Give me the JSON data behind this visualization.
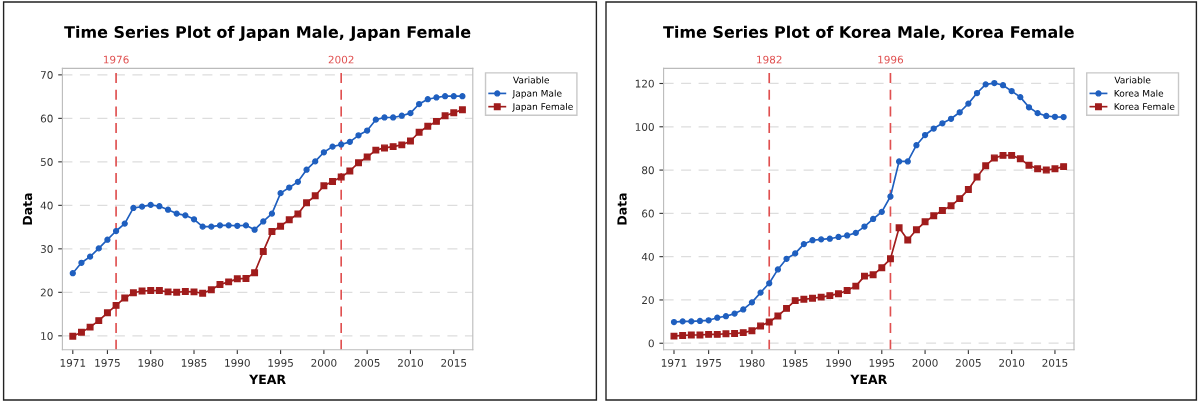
{
  "chart_data": [
    {
      "type": "line",
      "title": "Time Series Plot of Japan Male, Japan Female",
      "xlabel": "YEAR",
      "ylabel": "Data",
      "legend_title": "Variable",
      "legend": "top right",
      "grid": "y",
      "x": [
        1971,
        1972,
        1973,
        1974,
        1975,
        1976,
        1977,
        1978,
        1979,
        1980,
        1981,
        1982,
        1983,
        1984,
        1985,
        1986,
        1987,
        1988,
        1989,
        1990,
        1991,
        1992,
        1993,
        1994,
        1995,
        1996,
        1997,
        1998,
        1999,
        2000,
        2001,
        2002,
        2003,
        2004,
        2005,
        2006,
        2007,
        2008,
        2009,
        2010,
        2011,
        2012,
        2013,
        2014,
        2015,
        2016
      ],
      "xlim": [
        1969.8,
        2017.2
      ],
      "xticks": [
        1971,
        1975,
        1980,
        1985,
        1990,
        1995,
        2000,
        2005,
        2010,
        2015
      ],
      "ylim": [
        6.8,
        71.5
      ],
      "yticks": [
        10,
        20,
        30,
        40,
        50,
        60,
        70
      ],
      "ref_lines": [
        {
          "axis": "x",
          "value": 1976,
          "label": "1976",
          "color": "#e05050",
          "line_style": "dashed"
        },
        {
          "axis": "x",
          "value": 2002,
          "label": "2002",
          "color": "#e05050",
          "line_style": "dashed"
        }
      ],
      "series": [
        {
          "name": "Japan Male",
          "color": "#1f5fbf",
          "marker": "circle",
          "values": [
            24.4,
            26.8,
            28.2,
            30.1,
            32.1,
            34.1,
            35.8,
            39.4,
            39.7,
            40.1,
            39.8,
            39.0,
            38.1,
            37.7,
            36.8,
            35.1,
            35.1,
            35.4,
            35.4,
            35.3,
            35.4,
            34.4,
            36.3,
            38.1,
            42.8,
            44.1,
            45.4,
            48.2,
            50.1,
            52.2,
            53.5,
            54.0,
            54.6,
            56.1,
            57.2,
            59.7,
            60.2,
            60.2,
            60.6,
            61.2,
            63.3,
            64.4,
            64.8,
            65.1,
            65.1,
            65.1
          ]
        },
        {
          "name": "Japan Female",
          "color": "#a01c1c",
          "marker": "square",
          "values": [
            9.9,
            10.8,
            12.0,
            13.5,
            15.3,
            17.0,
            18.7,
            19.9,
            20.3,
            20.4,
            20.4,
            20.1,
            20.0,
            20.2,
            20.1,
            19.8,
            20.6,
            21.8,
            22.4,
            23.1,
            23.2,
            24.5,
            29.4,
            34.0,
            35.2,
            36.7,
            38.0,
            40.6,
            42.2,
            44.5,
            45.5,
            46.5,
            47.9,
            49.8,
            51.1,
            52.7,
            53.2,
            53.5,
            53.9,
            54.8,
            56.8,
            58.2,
            59.3,
            60.6,
            61.3,
            62.0
          ]
        }
      ]
    },
    {
      "type": "line",
      "title": "Time Series Plot of Korea Male, Korea Female",
      "xlabel": "YEAR",
      "ylabel": "Data",
      "legend_title": "Variable",
      "legend": "top right",
      "grid": "y",
      "x": [
        1971,
        1972,
        1973,
        1974,
        1975,
        1976,
        1977,
        1978,
        1979,
        1980,
        1981,
        1982,
        1983,
        1984,
        1985,
        1986,
        1987,
        1988,
        1989,
        1990,
        1991,
        1992,
        1993,
        1994,
        1995,
        1996,
        1997,
        1998,
        1999,
        2000,
        2001,
        2002,
        2003,
        2004,
        2005,
        2006,
        2007,
        2008,
        2009,
        2010,
        2011,
        2012,
        2013,
        2014,
        2015,
        2016
      ],
      "xlim": [
        1969.8,
        2017.2
      ],
      "xticks": [
        1971,
        1975,
        1980,
        1985,
        1990,
        1995,
        2000,
        2005,
        2010,
        2015
      ],
      "ylim": [
        -3,
        127
      ],
      "yticks": [
        0,
        20,
        40,
        60,
        80,
        100,
        120
      ],
      "ref_lines": [
        {
          "axis": "x",
          "value": 1982,
          "label": "1982",
          "color": "#e05050",
          "line_style": "dashed"
        },
        {
          "axis": "x",
          "value": 1996,
          "label": "1996",
          "color": "#e05050",
          "line_style": "dashed"
        }
      ],
      "series": [
        {
          "name": "Korea Male",
          "color": "#1f5fbf",
          "marker": "circle",
          "values": [
            9.8,
            10.1,
            10.1,
            10.3,
            10.6,
            11.8,
            12.5,
            13.7,
            15.6,
            18.9,
            23.4,
            27.7,
            34.1,
            39.0,
            41.5,
            45.8,
            47.6,
            48.0,
            48.3,
            49.1,
            49.8,
            51.0,
            53.9,
            57.4,
            60.7,
            67.8,
            84.0,
            84.0,
            91.5,
            96.2,
            99.2,
            101.6,
            103.7,
            106.7,
            110.7,
            115.6,
            119.6,
            120.2,
            119.2,
            116.5,
            113.7,
            109.0,
            106.3,
            105.0,
            104.6,
            104.5
          ]
        },
        {
          "name": "Korea Female",
          "color": "#a01c1c",
          "marker": "square",
          "values": [
            3.3,
            3.6,
            3.8,
            3.8,
            4.1,
            4.1,
            4.4,
            4.5,
            4.9,
            5.8,
            8.0,
            9.8,
            12.6,
            16.1,
            19.7,
            20.3,
            20.8,
            21.3,
            22.0,
            22.9,
            24.4,
            26.4,
            31.0,
            31.6,
            34.9,
            39.0,
            53.4,
            47.7,
            52.4,
            56.1,
            58.9,
            61.3,
            63.5,
            66.8,
            71.0,
            76.8,
            82.0,
            85.6,
            86.8,
            86.8,
            85.2,
            82.2,
            80.6,
            80.0,
            80.6,
            81.6
          ]
        }
      ]
    }
  ]
}
